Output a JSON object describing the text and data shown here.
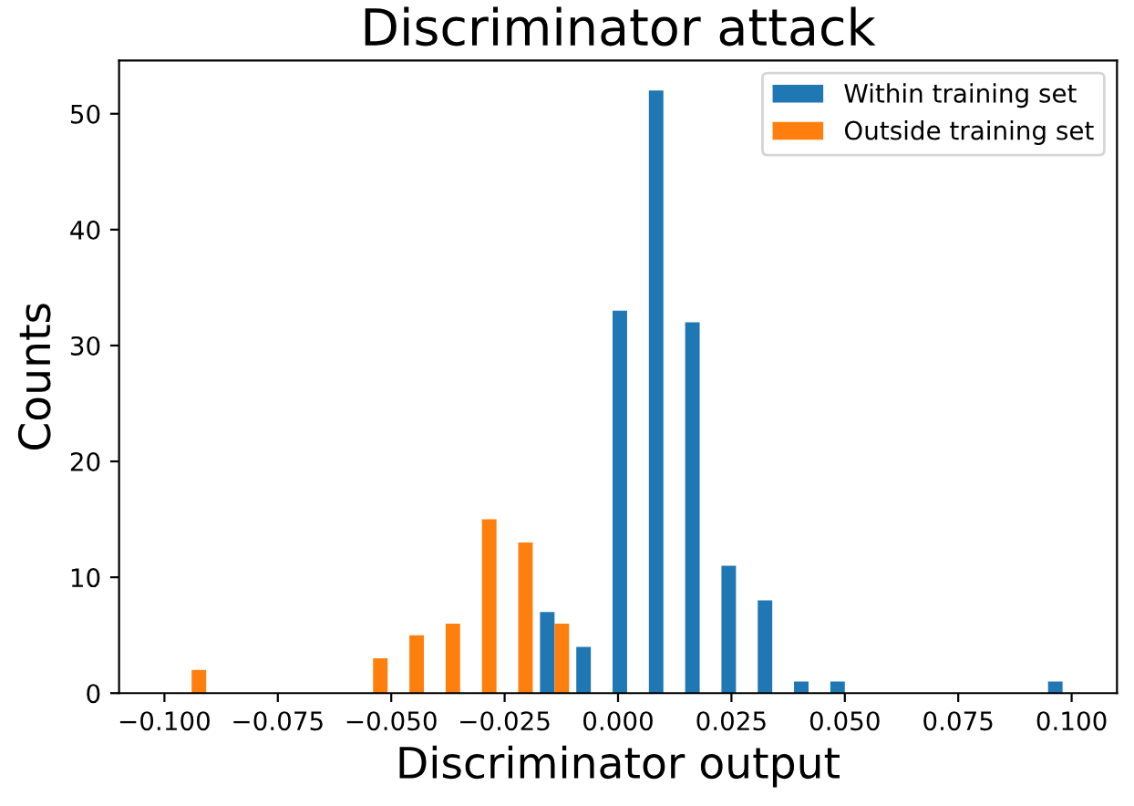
{
  "chart_data": {
    "type": "histogram",
    "title": "Discriminator attack",
    "xlabel": "Discriminator output",
    "ylabel": "Counts",
    "bins": [
      -0.098,
      -0.09,
      -0.082,
      -0.074,
      -0.066,
      -0.058,
      -0.05,
      -0.042,
      -0.034,
      -0.026,
      -0.018,
      -0.01,
      -0.002,
      0.006,
      0.014,
      0.022,
      0.03,
      0.038,
      0.046,
      0.054,
      0.062,
      0.07,
      0.078,
      0.086,
      0.094,
      0.102
    ],
    "series": [
      {
        "name": "Within training set",
        "color": "#1f77b4",
        "values": [
          0,
          0,
          0,
          0,
          0,
          0,
          0,
          0,
          0,
          0,
          7,
          4,
          33,
          52,
          32,
          11,
          8,
          1,
          1,
          0,
          0,
          0,
          0,
          0,
          1
        ]
      },
      {
        "name": "Outside training set",
        "color": "#ff7f0e",
        "values": [
          2,
          0,
          0,
          0,
          0,
          3,
          5,
          6,
          15,
          13,
          6,
          0,
          0,
          0,
          0,
          0,
          0,
          0,
          0,
          0,
          0,
          0,
          0,
          0,
          0
        ]
      }
    ],
    "xlim": [
      -0.11,
      0.11
    ],
    "ylim": [
      0,
      54.6
    ],
    "xticks": [
      {
        "value": -0.1,
        "label": "−0.100"
      },
      {
        "value": -0.075,
        "label": "−0.075"
      },
      {
        "value": -0.05,
        "label": "−0.050"
      },
      {
        "value": -0.025,
        "label": "−0.025"
      },
      {
        "value": 0,
        "label": "0.000"
      },
      {
        "value": 0.025,
        "label": "0.025"
      },
      {
        "value": 0.05,
        "label": "0.050"
      },
      {
        "value": 0.075,
        "label": "0.075"
      },
      {
        "value": 0.1,
        "label": "0.100"
      }
    ],
    "yticks": [
      0,
      10,
      20,
      30,
      40,
      50
    ],
    "grid": false,
    "legend": "top right"
  }
}
